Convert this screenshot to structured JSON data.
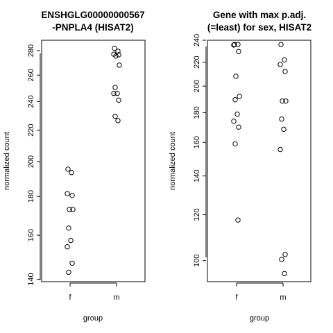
{
  "chart_data": [
    {
      "type": "scatter",
      "title": [
        "ENSHGLG00000000567",
        "-PNPLA4 (HISAT2)"
      ],
      "xlabel": "group",
      "ylabel": "normalized count",
      "categories": [
        "f",
        "m"
      ],
      "y_scale": "log",
      "ylim": [
        139,
        289
      ],
      "yticks": [
        140,
        160,
        180,
        200,
        220,
        240,
        260,
        280
      ],
      "series": [
        {
          "category": "f",
          "values": [
            195.5,
            193.5,
            181.5,
            180.5,
            173,
            173,
            163.5,
            157.5,
            154.5,
            147,
            143
          ]
        },
        {
          "category": "m",
          "values": [
            282,
            279.5,
            277,
            276.5,
            275.5,
            268,
            250.5,
            246,
            246,
            241,
            229.5,
            226.5
          ]
        }
      ]
    },
    {
      "type": "scatter",
      "title": [
        "Gene with max p.adj.",
        "(=least) for sex, HISAT2"
      ],
      "xlabel": "group",
      "ylabel": "normalized count",
      "categories": [
        "f",
        "m"
      ],
      "y_scale": "log",
      "ylim": [
        92,
        240
      ],
      "yticks": [
        100,
        120,
        140,
        160,
        180,
        200,
        220,
        240
      ],
      "series": [
        {
          "category": "f",
          "values": [
            236,
            236,
            235.5,
            229.5,
            208,
            192,
            189.5,
            179,
            174,
            170,
            159,
            117.5
          ]
        },
        {
          "category": "m",
          "values": [
            236,
            222,
            218,
            212,
            188.5,
            188.5,
            175.5,
            168.5,
            155.5,
            102.5,
            100.5,
            95
          ]
        }
      ]
    }
  ]
}
